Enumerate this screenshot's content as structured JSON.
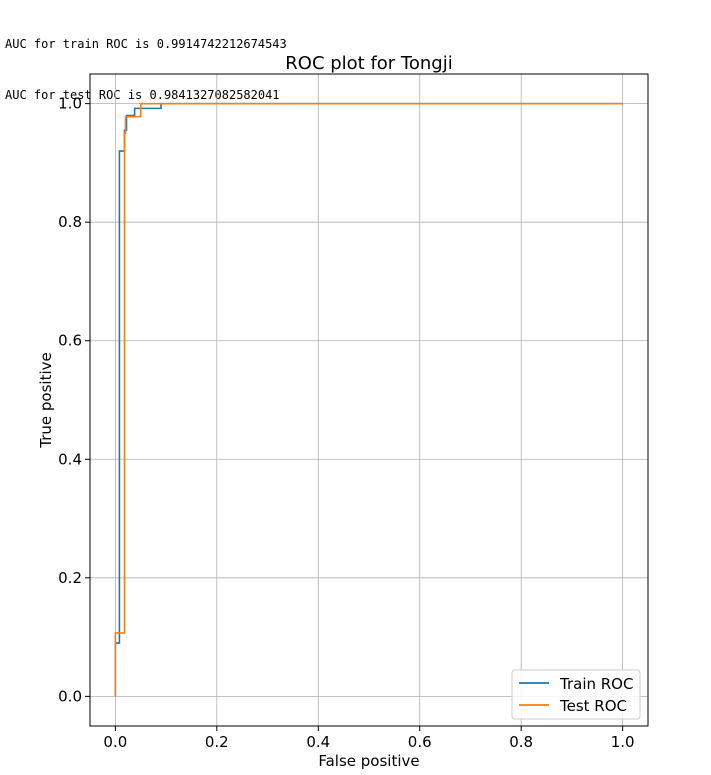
{
  "console": {
    "line1": "AUC for train ROC is 0.9914742212674543",
    "line2": "AUC for test ROC is 0.9841327082582041"
  },
  "chart_data": {
    "type": "line",
    "title": "ROC plot for Tongji",
    "xlabel": "False positive",
    "ylabel": "True positive",
    "xlim": [
      -0.05,
      1.05
    ],
    "ylim": [
      -0.05,
      1.05
    ],
    "xticks": [
      "0.0",
      "0.2",
      "0.4",
      "0.6",
      "0.8",
      "1.0"
    ],
    "yticks": [
      "0.0",
      "0.2",
      "0.4",
      "0.6",
      "0.8",
      "1.0"
    ],
    "grid": true,
    "legend_position": "lower-right",
    "series": [
      {
        "name": "Train ROC",
        "color": "#1f77b4",
        "points": [
          [
            0,
            0
          ],
          [
            0,
            0.09
          ],
          [
            0.008,
            0.09
          ],
          [
            0.008,
            0.92
          ],
          [
            0.018,
            0.92
          ],
          [
            0.018,
            0.955
          ],
          [
            0.022,
            0.955
          ],
          [
            0.022,
            0.98
          ],
          [
            0.038,
            0.98
          ],
          [
            0.038,
            0.992
          ],
          [
            0.09,
            0.992
          ],
          [
            0.09,
            1.0
          ],
          [
            1.0,
            1.0
          ]
        ]
      },
      {
        "name": "Test ROC",
        "color": "#ff7f0e",
        "points": [
          [
            0,
            0
          ],
          [
            0,
            0.107
          ],
          [
            0.018,
            0.107
          ],
          [
            0.018,
            0.95
          ],
          [
            0.02,
            0.95
          ],
          [
            0.02,
            0.978
          ],
          [
            0.035,
            0.978
          ],
          [
            0.035,
            0.978
          ],
          [
            0.05,
            0.978
          ],
          [
            0.05,
            1.0
          ],
          [
            1.0,
            1.0
          ]
        ]
      }
    ]
  }
}
